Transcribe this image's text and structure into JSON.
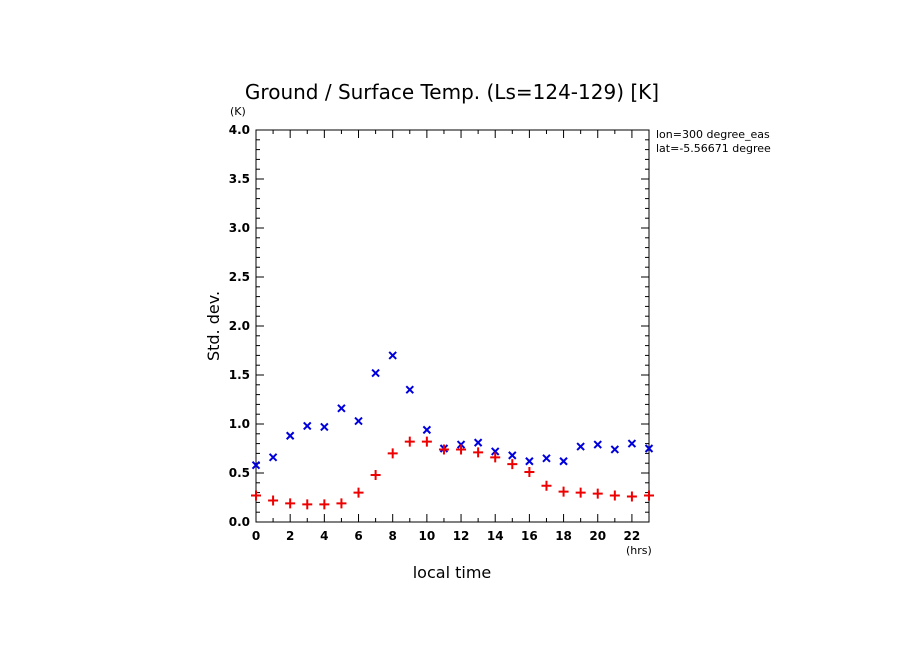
{
  "chart_data": {
    "type": "scatter",
    "title": "Ground / Surface Temp. (Ls=124-129) [K]",
    "xlabel": "local time",
    "xunit": "(hrs)",
    "ylabel": "Std. dev.",
    "yunit": "(K)",
    "xlim": [
      0,
      23
    ],
    "ylim": [
      0.0,
      4.0
    ],
    "xticks": [
      0,
      2,
      4,
      6,
      8,
      10,
      12,
      14,
      16,
      18,
      20,
      22
    ],
    "yticks": [
      "0.0",
      "0.5",
      "1.0",
      "1.5",
      "2.0",
      "2.5",
      "3.0",
      "3.5",
      "4.0"
    ],
    "annotations": [
      "lon=300 degree_eas",
      "lat=-5.56671 degree"
    ],
    "x": [
      0,
      1,
      2,
      3,
      4,
      5,
      6,
      7,
      8,
      9,
      10,
      11,
      12,
      13,
      14,
      15,
      16,
      17,
      18,
      19,
      20,
      21,
      22,
      23
    ],
    "series": [
      {
        "marker": "x",
        "color": "#0000dd",
        "values": [
          0.58,
          0.66,
          0.88,
          0.98,
          0.97,
          1.16,
          1.03,
          1.52,
          1.7,
          1.35,
          0.94,
          0.75,
          0.79,
          0.81,
          0.72,
          0.68,
          0.62,
          0.65,
          0.62,
          0.77,
          0.79,
          0.74,
          0.8,
          0.75
        ]
      },
      {
        "marker": "+",
        "color": "#ee0000",
        "values": [
          0.27,
          0.22,
          0.19,
          0.18,
          0.18,
          0.19,
          0.3,
          0.48,
          0.7,
          0.82,
          0.82,
          0.74,
          0.74,
          0.71,
          0.66,
          0.59,
          0.51,
          0.37,
          0.31,
          0.3,
          0.29,
          0.27,
          0.26,
          0.27
        ]
      }
    ]
  }
}
